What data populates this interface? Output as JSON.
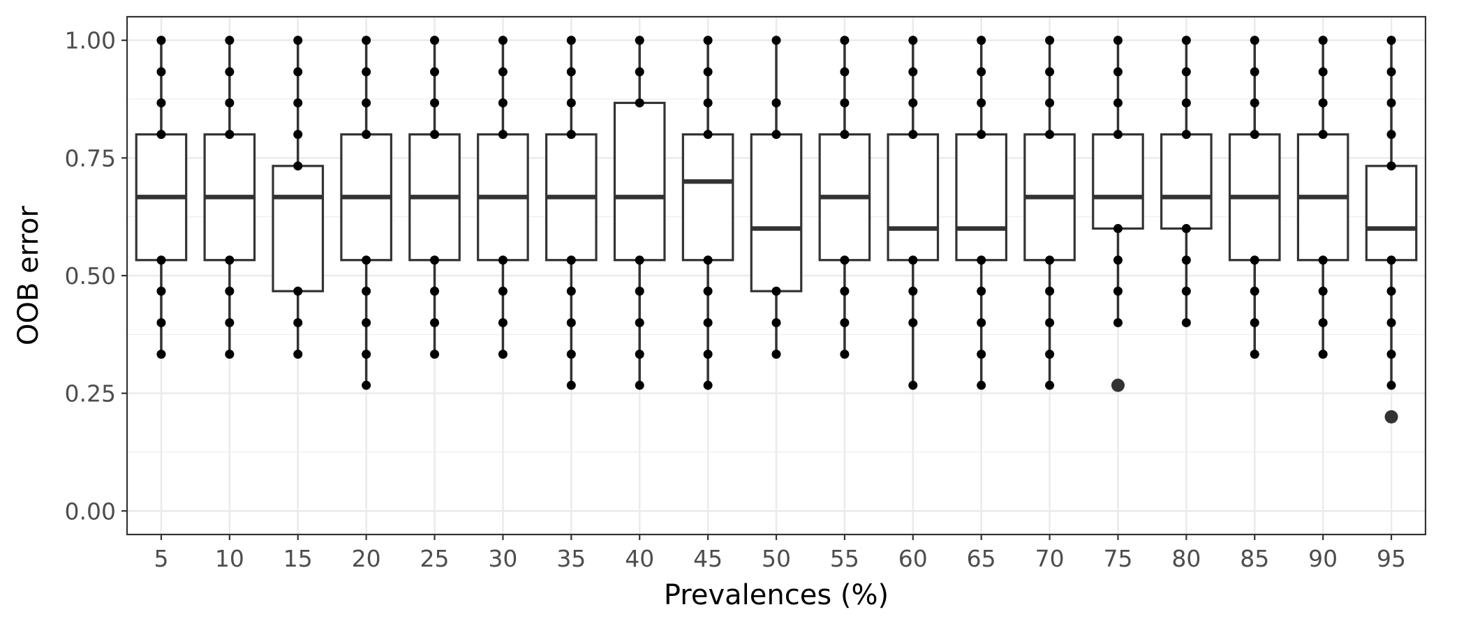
{
  "chart_data": {
    "type": "box",
    "title": "",
    "xlabel": "Prevalences (%)",
    "ylabel": "OOB error",
    "ylim": [
      -0.05,
      1.05
    ],
    "yticks": [
      0.0,
      0.25,
      0.5,
      0.75,
      1.0
    ],
    "ytick_labels": [
      "0.00",
      "0.25",
      "0.50",
      "0.75",
      "1.00"
    ],
    "grid": true,
    "categories": [
      "5",
      "10",
      "15",
      "20",
      "25",
      "30",
      "35",
      "40",
      "45",
      "50",
      "55",
      "60",
      "65",
      "70",
      "75",
      "80",
      "85",
      "90",
      "95"
    ],
    "boxes": [
      {
        "q1": 0.533,
        "median": 0.667,
        "q3": 0.8,
        "whisker_low": 0.333,
        "whisker_high": 1.0,
        "points": [
          1.0,
          0.933,
          0.867,
          0.8,
          0.533,
          0.467,
          0.4,
          0.333
        ],
        "outliers": []
      },
      {
        "q1": 0.533,
        "median": 0.667,
        "q3": 0.8,
        "whisker_low": 0.333,
        "whisker_high": 1.0,
        "points": [
          1.0,
          0.933,
          0.867,
          0.8,
          0.533,
          0.467,
          0.4,
          0.333
        ],
        "outliers": []
      },
      {
        "q1": 0.467,
        "median": 0.667,
        "q3": 0.733,
        "whisker_low": 0.333,
        "whisker_high": 1.0,
        "points": [
          1.0,
          0.933,
          0.867,
          0.8,
          0.733,
          0.467,
          0.4,
          0.333
        ],
        "outliers": []
      },
      {
        "q1": 0.533,
        "median": 0.667,
        "q3": 0.8,
        "whisker_low": 0.267,
        "whisker_high": 1.0,
        "points": [
          1.0,
          0.933,
          0.867,
          0.8,
          0.533,
          0.467,
          0.4,
          0.333,
          0.267
        ],
        "outliers": []
      },
      {
        "q1": 0.533,
        "median": 0.667,
        "q3": 0.8,
        "whisker_low": 0.333,
        "whisker_high": 1.0,
        "points": [
          1.0,
          0.933,
          0.867,
          0.8,
          0.533,
          0.467,
          0.4,
          0.333
        ],
        "outliers": []
      },
      {
        "q1": 0.533,
        "median": 0.667,
        "q3": 0.8,
        "whisker_low": 0.333,
        "whisker_high": 1.0,
        "points": [
          1.0,
          0.933,
          0.867,
          0.8,
          0.533,
          0.467,
          0.4,
          0.333
        ],
        "outliers": []
      },
      {
        "q1": 0.533,
        "median": 0.667,
        "q3": 0.8,
        "whisker_low": 0.267,
        "whisker_high": 1.0,
        "points": [
          1.0,
          0.933,
          0.867,
          0.8,
          0.533,
          0.467,
          0.4,
          0.333,
          0.267
        ],
        "outliers": []
      },
      {
        "q1": 0.533,
        "median": 0.667,
        "q3": 0.867,
        "whisker_low": 0.267,
        "whisker_high": 1.0,
        "points": [
          1.0,
          0.933,
          0.867,
          0.533,
          0.467,
          0.4,
          0.333,
          0.267
        ],
        "outliers": []
      },
      {
        "q1": 0.533,
        "median": 0.7,
        "q3": 0.8,
        "whisker_low": 0.267,
        "whisker_high": 1.0,
        "points": [
          1.0,
          0.933,
          0.867,
          0.8,
          0.533,
          0.467,
          0.4,
          0.333,
          0.267
        ],
        "outliers": []
      },
      {
        "q1": 0.467,
        "median": 0.6,
        "q3": 0.8,
        "whisker_low": 0.333,
        "whisker_high": 1.0,
        "points": [
          1.0,
          0.867,
          0.8,
          0.467,
          0.4,
          0.333
        ],
        "outliers": []
      },
      {
        "q1": 0.533,
        "median": 0.667,
        "q3": 0.8,
        "whisker_low": 0.333,
        "whisker_high": 1.0,
        "points": [
          1.0,
          0.933,
          0.867,
          0.8,
          0.533,
          0.467,
          0.4,
          0.333
        ],
        "outliers": []
      },
      {
        "q1": 0.533,
        "median": 0.6,
        "q3": 0.8,
        "whisker_low": 0.267,
        "whisker_high": 1.0,
        "points": [
          1.0,
          0.933,
          0.867,
          0.8,
          0.533,
          0.467,
          0.4,
          0.267
        ],
        "outliers": []
      },
      {
        "q1": 0.533,
        "median": 0.6,
        "q3": 0.8,
        "whisker_low": 0.267,
        "whisker_high": 1.0,
        "points": [
          1.0,
          0.933,
          0.867,
          0.8,
          0.533,
          0.467,
          0.4,
          0.333,
          0.267
        ],
        "outliers": []
      },
      {
        "q1": 0.533,
        "median": 0.667,
        "q3": 0.8,
        "whisker_low": 0.267,
        "whisker_high": 1.0,
        "points": [
          1.0,
          0.933,
          0.867,
          0.8,
          0.533,
          0.467,
          0.4,
          0.333,
          0.267
        ],
        "outliers": []
      },
      {
        "q1": 0.6,
        "median": 0.667,
        "q3": 0.8,
        "whisker_low": 0.4,
        "whisker_high": 1.0,
        "points": [
          1.0,
          0.933,
          0.867,
          0.8,
          0.6,
          0.533,
          0.467,
          0.4
        ],
        "outliers": [
          0.267
        ]
      },
      {
        "q1": 0.6,
        "median": 0.667,
        "q3": 0.8,
        "whisker_low": 0.4,
        "whisker_high": 1.0,
        "points": [
          1.0,
          0.933,
          0.867,
          0.8,
          0.6,
          0.533,
          0.467,
          0.4
        ],
        "outliers": []
      },
      {
        "q1": 0.533,
        "median": 0.667,
        "q3": 0.8,
        "whisker_low": 0.333,
        "whisker_high": 1.0,
        "points": [
          1.0,
          0.933,
          0.867,
          0.8,
          0.533,
          0.467,
          0.4,
          0.333
        ],
        "outliers": []
      },
      {
        "q1": 0.533,
        "median": 0.667,
        "q3": 0.8,
        "whisker_low": 0.333,
        "whisker_high": 1.0,
        "points": [
          1.0,
          0.933,
          0.867,
          0.8,
          0.533,
          0.467,
          0.4,
          0.333
        ],
        "outliers": []
      },
      {
        "q1": 0.533,
        "median": 0.6,
        "q3": 0.733,
        "whisker_low": 0.267,
        "whisker_high": 1.0,
        "points": [
          1.0,
          0.933,
          0.867,
          0.8,
          0.733,
          0.533,
          0.467,
          0.4,
          0.333,
          0.267
        ],
        "outliers": [
          0.2
        ]
      }
    ],
    "colors": {
      "box_stroke": "#333333",
      "point": "#000000",
      "grid": "#ebebeb",
      "panel_border": "#333333",
      "tick_text": "#4d4d4d",
      "label_text": "#000000"
    }
  }
}
